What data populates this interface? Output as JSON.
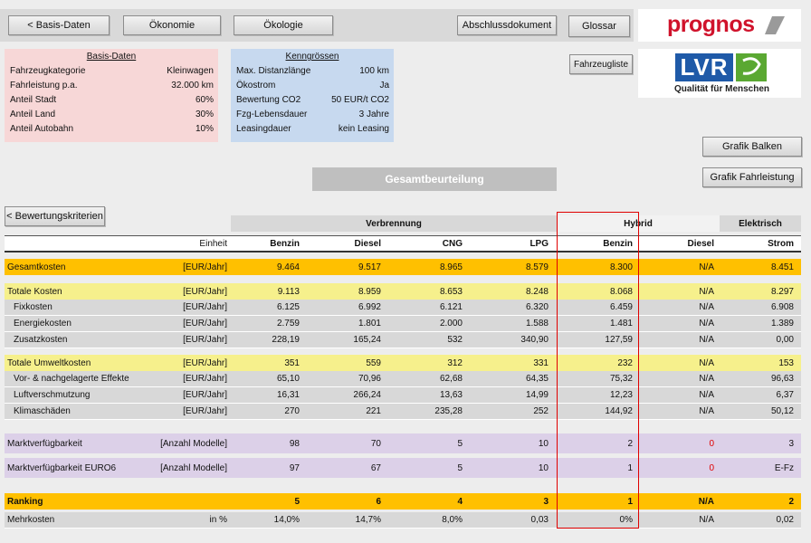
{
  "nav": {
    "basis_btn": "< Basis-Daten",
    "oekonomie_btn": "Ökonomie",
    "oekologie_btn": "Ökologie",
    "abschluss_btn": "Abschlussdokument",
    "glossar_btn": "Glossar",
    "fahrzeugliste_btn": "Fahrzeugliste",
    "grafik_balken_btn": "Grafik Balken",
    "grafik_fahrleistung_btn": "Grafik Fahrleistung",
    "bewertungskriterien_btn": "< Bewertungskriterien"
  },
  "logos": {
    "prognos": "prognos",
    "lvr": "LVR",
    "lvr_tagline": "Qualität für Menschen"
  },
  "basis": {
    "title": "Basis-Daten",
    "rows": [
      {
        "label": "Fahrzeugkategorie",
        "value": "Kleinwagen"
      },
      {
        "label": "Fahrleistung p.a.",
        "value": "32.000 km"
      },
      {
        "label": "Anteil Stadt",
        "value": "60%"
      },
      {
        "label": "Anteil Land",
        "value": "30%"
      },
      {
        "label": "Anteil Autobahn",
        "value": "10%"
      }
    ]
  },
  "kenn": {
    "title": "Kenngrössen",
    "rows": [
      {
        "label": "Max. Distanzlänge",
        "value": "100 km"
      },
      {
        "label": "Ökostrom",
        "value": "Ja"
      },
      {
        "label": "Bewertung CO2",
        "value": "50 EUR/t CO2"
      },
      {
        "label": "Fzg-Lebensdauer",
        "value": "3 Jahre"
      },
      {
        "label": "Leasingdauer",
        "value": "kein Leasing"
      }
    ]
  },
  "table": {
    "title": "Gesamtbeurteilung",
    "groups": {
      "verbrennung": "Verbrennung",
      "hybrid": "Hybrid",
      "elektrisch": "Elektrisch"
    },
    "unit_header": "Einheit",
    "columns": [
      "Benzin",
      "Diesel",
      "CNG",
      "LPG",
      "Benzin",
      "Diesel",
      "Strom"
    ],
    "rows": [
      {
        "label": "Gesamtkosten",
        "unit": "[EUR/Jahr]",
        "values": [
          "9.464",
          "9.517",
          "8.965",
          "8.579",
          "8.300",
          "N/A",
          "8.451"
        ]
      },
      {
        "label": "Totale Kosten",
        "unit": "[EUR/Jahr]",
        "values": [
          "9.113",
          "8.959",
          "8.653",
          "8.248",
          "8.068",
          "N/A",
          "8.297"
        ]
      },
      {
        "label": "Fixkosten",
        "unit": "[EUR/Jahr]",
        "values": [
          "6.125",
          "6.992",
          "6.121",
          "6.320",
          "6.459",
          "N/A",
          "6.908"
        ]
      },
      {
        "label": "Energiekosten",
        "unit": "[EUR/Jahr]",
        "values": [
          "2.759",
          "1.801",
          "2.000",
          "1.588",
          "1.481",
          "N/A",
          "1.389"
        ]
      },
      {
        "label": "Zusatzkosten",
        "unit": "[EUR/Jahr]",
        "values": [
          "228,19",
          "165,24",
          "532",
          "340,90",
          "127,59",
          "N/A",
          "0,00"
        ]
      },
      {
        "label": "Totale Umweltkosten",
        "unit": "[EUR/Jahr]",
        "values": [
          "351",
          "559",
          "312",
          "331",
          "232",
          "N/A",
          "153"
        ]
      },
      {
        "label": "Vor- & nachgelagerte Effekte",
        "unit": "[EUR/Jahr]",
        "values": [
          "65,10",
          "70,96",
          "62,68",
          "64,35",
          "75,32",
          "N/A",
          "96,63"
        ]
      },
      {
        "label": "Luftverschmutzung",
        "unit": "[EUR/Jahr]",
        "values": [
          "16,31",
          "266,24",
          "13,63",
          "14,99",
          "12,23",
          "N/A",
          "6,37"
        ]
      },
      {
        "label": "Klimaschäden",
        "unit": "[EUR/Jahr]",
        "values": [
          "270",
          "221",
          "235,28",
          "252",
          "144,92",
          "N/A",
          "50,12"
        ]
      },
      {
        "label": "Marktverfügbarkeit",
        "unit": "[Anzahl Modelle]",
        "values": [
          "98",
          "70",
          "5",
          "10",
          "2",
          "0",
          "3"
        ]
      },
      {
        "label": "Marktverfügbarkeit EURO6",
        "unit": "[Anzahl Modelle]",
        "values": [
          "97",
          "67",
          "5",
          "10",
          "1",
          "0",
          "E-Fz"
        ]
      },
      {
        "label": "Ranking",
        "unit": "",
        "values": [
          "5",
          "6",
          "4",
          "3",
          "1",
          "N/A",
          "2"
        ]
      },
      {
        "label": "Mehrkosten",
        "unit": "in %",
        "values": [
          "14,0%",
          "14,7%",
          "8,0%",
          "0,03",
          "0%",
          "N/A",
          "0,02"
        ]
      }
    ]
  },
  "colors": {
    "orange": "#ffc000",
    "yellow": "#f6f08c",
    "grey": "#d8d8d8",
    "lavender": "#dcd0e8",
    "pink": "#f7d7d7",
    "blue": "#c7d9ef",
    "highlight": "#e00000"
  }
}
